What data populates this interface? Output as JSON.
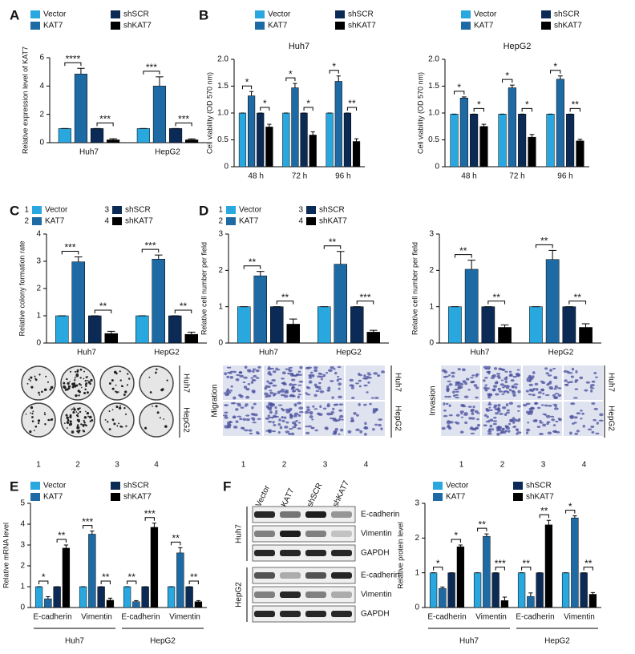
{
  "panel_labels": [
    "A",
    "B",
    "C",
    "D",
    "E",
    "F"
  ],
  "chart_data": [
    {
      "type": "bar",
      "ylabel": "Relative expression level of KAT7",
      "categories": [
        "Huh7",
        "HepG2"
      ],
      "ylim": [
        0,
        6
      ],
      "yticks": [
        0,
        2,
        4,
        6
      ],
      "legend": true,
      "series": [
        {
          "name": "Vector",
          "color": "#29a8e0",
          "values": [
            1,
            1
          ],
          "errors": [
            0,
            0
          ]
        },
        {
          "name": "KAT7",
          "color": "#1e6aa5",
          "values": [
            4.85,
            4.0
          ],
          "errors": [
            0.4,
            0.65
          ]
        },
        {
          "name": "shSCR",
          "color": "#0b2a55",
          "values": [
            1,
            1
          ],
          "errors": [
            0,
            0
          ]
        },
        {
          "name": "shKAT7",
          "color": "#000000",
          "values": [
            0.2,
            0.2
          ],
          "errors": [
            0.08,
            0.07
          ]
        }
      ],
      "significance": [
        [
          "****",
          "***"
        ],
        [
          "***",
          "***"
        ]
      ]
    },
    {
      "type": "bar",
      "title": "Huh7",
      "ylabel": "Cell viability (OD 570 nm)",
      "categories": [
        "48 h",
        "72 h",
        "96 h"
      ],
      "ylim": [
        0,
        2
      ],
      "yticks": [
        0,
        0.5,
        {
          "value": 1,
          "label": "1.0"
        },
        1.5,
        {
          "value": 2,
          "label": "2.0"
        }
      ],
      "legend": true,
      "series": [
        {
          "name": "Vector",
          "color": "#29a8e0",
          "values": [
            1,
            1,
            1
          ],
          "errors": [
            0,
            0,
            0
          ]
        },
        {
          "name": "KAT7",
          "color": "#1e6aa5",
          "values": [
            1.32,
            1.47,
            1.59
          ],
          "errors": [
            0.08,
            0.08,
            0.1
          ]
        },
        {
          "name": "shSCR",
          "color": "#0b2a55",
          "values": [
            1,
            1,
            1
          ],
          "errors": [
            0,
            0,
            0
          ]
        },
        {
          "name": "shKAT7",
          "color": "#000000",
          "values": [
            0.74,
            0.59,
            0.47
          ],
          "errors": [
            0.05,
            0.06,
            0.05
          ]
        }
      ],
      "significance": [
        [
          "*",
          "*"
        ],
        [
          "*",
          "*"
        ],
        [
          "*",
          "**"
        ]
      ]
    },
    {
      "type": "bar",
      "title": "HepG2",
      "ylabel": "Cell viability (OD 570 nm)",
      "categories": [
        "48 h",
        "72 h",
        "96 h"
      ],
      "ylim": [
        0,
        2
      ],
      "yticks": [
        0,
        0.5,
        {
          "value": 1,
          "label": "1.0"
        },
        1.5,
        {
          "value": 2,
          "label": "2.0"
        }
      ],
      "legend": true,
      "series": [
        {
          "name": "Vector",
          "color": "#29a8e0",
          "values": [
            0.98,
            0.98,
            0.98
          ],
          "errors": [
            0,
            0,
            0
          ]
        },
        {
          "name": "KAT7",
          "color": "#1e6aa5",
          "values": [
            1.28,
            1.47,
            1.63
          ],
          "errors": [
            0.02,
            0.05,
            0.06
          ]
        },
        {
          "name": "shSCR",
          "color": "#0b2a55",
          "values": [
            0.98,
            0.98,
            0.98
          ],
          "errors": [
            0,
            0,
            0
          ]
        },
        {
          "name": "shKAT7",
          "color": "#000000",
          "values": [
            0.75,
            0.55,
            0.48
          ],
          "errors": [
            0.04,
            0.05,
            0.03
          ]
        }
      ],
      "significance": [
        [
          "*",
          "*"
        ],
        [
          "*",
          "*"
        ],
        [
          "*",
          "**"
        ]
      ]
    },
    {
      "type": "bar",
      "ylabel": "Relative colony formation rate",
      "categories": [
        "Huh7",
        "HepG2"
      ],
      "ylim": [
        0,
        4
      ],
      "yticks": [
        0,
        1,
        2,
        3,
        4
      ],
      "legend": true,
      "series": [
        {
          "name": "Vector",
          "number": "1",
          "color": "#29a8e0",
          "values": [
            1,
            1
          ],
          "errors": [
            0,
            0
          ]
        },
        {
          "name": "KAT7",
          "number": "2",
          "color": "#1e6aa5",
          "values": [
            2.98,
            3.08
          ],
          "errors": [
            0.18,
            0.15
          ]
        },
        {
          "name": "shSCR",
          "number": "3",
          "color": "#0b2a55",
          "values": [
            1,
            1
          ],
          "errors": [
            0,
            0
          ]
        },
        {
          "name": "shKAT7",
          "number": "4",
          "color": "#000000",
          "values": [
            0.35,
            0.32
          ],
          "errors": [
            0.08,
            0.08
          ]
        }
      ],
      "significance": [
        [
          "***",
          "**"
        ],
        [
          "***",
          "**"
        ]
      ]
    },
    {
      "type": "bar",
      "ylabel": "Relative cell number per field",
      "categories": [
        "Huh7",
        "HepG2"
      ],
      "ylim": [
        0,
        3
      ],
      "yticks": [
        0,
        1,
        2,
        3
      ],
      "legend": true,
      "series": [
        {
          "name": "Vector",
          "number": "1",
          "color": "#29a8e0",
          "values": [
            1,
            1
          ],
          "errors": [
            0,
            0
          ]
        },
        {
          "name": "KAT7",
          "number": "2",
          "color": "#1e6aa5",
          "values": [
            1.85,
            2.17
          ],
          "errors": [
            0.12,
            0.35
          ]
        },
        {
          "name": "shSCR",
          "number": "3",
          "color": "#0b2a55",
          "values": [
            1,
            1
          ],
          "errors": [
            0,
            0
          ]
        },
        {
          "name": "shKAT7",
          "number": "4",
          "color": "#000000",
          "values": [
            0.52,
            0.3
          ],
          "errors": [
            0.14,
            0.05
          ]
        }
      ],
      "significance": [
        [
          "**",
          "**"
        ],
        [
          "**",
          "***"
        ]
      ]
    },
    {
      "type": "bar",
      "ylabel": "Relative cell number per field",
      "categories": [
        "Huh7",
        "HepG2"
      ],
      "ylim": [
        0,
        3
      ],
      "yticks": [
        0,
        1,
        2,
        3
      ],
      "legend": false,
      "series": [
        {
          "name": "Vector",
          "color": "#29a8e0",
          "values": [
            1,
            1
          ],
          "errors": [
            0,
            0
          ]
        },
        {
          "name": "KAT7",
          "color": "#1e6aa5",
          "values": [
            2.03,
            2.3
          ],
          "errors": [
            0.25,
            0.25
          ]
        },
        {
          "name": "shSCR",
          "color": "#0b2a55",
          "values": [
            1,
            1
          ],
          "errors": [
            0,
            0
          ]
        },
        {
          "name": "shKAT7",
          "color": "#000000",
          "values": [
            0.43,
            0.43
          ],
          "errors": [
            0.07,
            0.1
          ]
        }
      ],
      "significance": [
        [
          "**",
          "**"
        ],
        [
          "**",
          "**"
        ]
      ]
    },
    {
      "type": "bar",
      "ylabel": "Relative mRNA level",
      "categories": [
        "E-cadherin",
        "Vimentin",
        "E-cadherin",
        "Vimentin"
      ],
      "group_labels": [
        "Huh7",
        "HepG2"
      ],
      "ylim": [
        0,
        5
      ],
      "yticks": [
        0,
        1,
        2,
        3,
        4,
        5
      ],
      "legend": true,
      "series": [
        {
          "name": "Vector",
          "color": "#29a8e0",
          "values": [
            1,
            1,
            1,
            1
          ],
          "errors": [
            0,
            0,
            0,
            0
          ]
        },
        {
          "name": "KAT7",
          "color": "#1e6aa5",
          "values": [
            0.42,
            3.52,
            0.28,
            2.62
          ],
          "errors": [
            0.1,
            0.15,
            0.05,
            0.25
          ]
        },
        {
          "name": "shSCR",
          "color": "#0b2a55",
          "values": [
            1,
            1,
            1,
            1
          ],
          "errors": [
            0,
            0,
            0,
            0
          ]
        },
        {
          "name": "shKAT7",
          "color": "#000000",
          "values": [
            2.85,
            0.35,
            3.85,
            0.28
          ],
          "errors": [
            0.15,
            0.1,
            0.2,
            0.05
          ]
        }
      ],
      "significance": [
        [
          "*",
          "**"
        ],
        [
          "***",
          "**"
        ],
        [
          "**",
          "***"
        ],
        [
          "**",
          "**"
        ]
      ]
    },
    {
      "type": "bar",
      "ylabel": "Relative protein level",
      "categories": [
        "E-cadherin",
        "Vimentin",
        "E-cadherin",
        "Vimentin"
      ],
      "group_labels": [
        "Huh7",
        "HepG2"
      ],
      "ylim": [
        0,
        3
      ],
      "yticks": [
        0,
        1,
        2,
        3
      ],
      "legend": true,
      "series": [
        {
          "name": "Vector",
          "color": "#29a8e0",
          "values": [
            1,
            1,
            1,
            1
          ],
          "errors": [
            0,
            0,
            0,
            0
          ]
        },
        {
          "name": "KAT7",
          "color": "#1e6aa5",
          "values": [
            0.55,
            2.05,
            0.32,
            2.58
          ],
          "errors": [
            0.04,
            0.07,
            0.1,
            0.06
          ]
        },
        {
          "name": "shSCR",
          "color": "#0b2a55",
          "values": [
            1,
            1,
            1,
            1
          ],
          "errors": [
            0,
            0,
            0,
            0
          ]
        },
        {
          "name": "shKAT7",
          "color": "#000000",
          "values": [
            1.75,
            0.2,
            2.38,
            0.38
          ],
          "errors": [
            0.05,
            0.1,
            0.13,
            0.05
          ]
        }
      ],
      "significance": [
        [
          "*",
          "*"
        ],
        [
          "**",
          "***"
        ],
        [
          "**",
          "**"
        ],
        [
          "*",
          "**"
        ]
      ]
    }
  ],
  "colony_image": {
    "row_labels": [
      "Huh7",
      "HepG2"
    ],
    "column_labels": [
      "1",
      "2",
      "3",
      "4"
    ]
  },
  "transwell_images": [
    {
      "side_label": "Migration",
      "row_labels": [
        "Huh7",
        "HepG2"
      ],
      "column_labels": [
        "1",
        "2",
        "3",
        "4"
      ]
    },
    {
      "side_label": "Invasion",
      "row_labels": [
        "Huh7",
        "HepG2"
      ],
      "column_labels": [
        "1",
        "2",
        "3",
        "4"
      ]
    }
  ],
  "western_blot": {
    "lanes": [
      "Vector",
      "KAT7",
      "shSCR",
      "shKAT7"
    ],
    "blocks": [
      {
        "cell_line": "Huh7",
        "proteins": [
          "E-cadherin",
          "Vimentin",
          "GAPDH"
        ]
      },
      {
        "cell_line": "HepG2",
        "proteins": [
          "E-cadherin",
          "Vimentin",
          "GAPDH"
        ]
      }
    ]
  }
}
